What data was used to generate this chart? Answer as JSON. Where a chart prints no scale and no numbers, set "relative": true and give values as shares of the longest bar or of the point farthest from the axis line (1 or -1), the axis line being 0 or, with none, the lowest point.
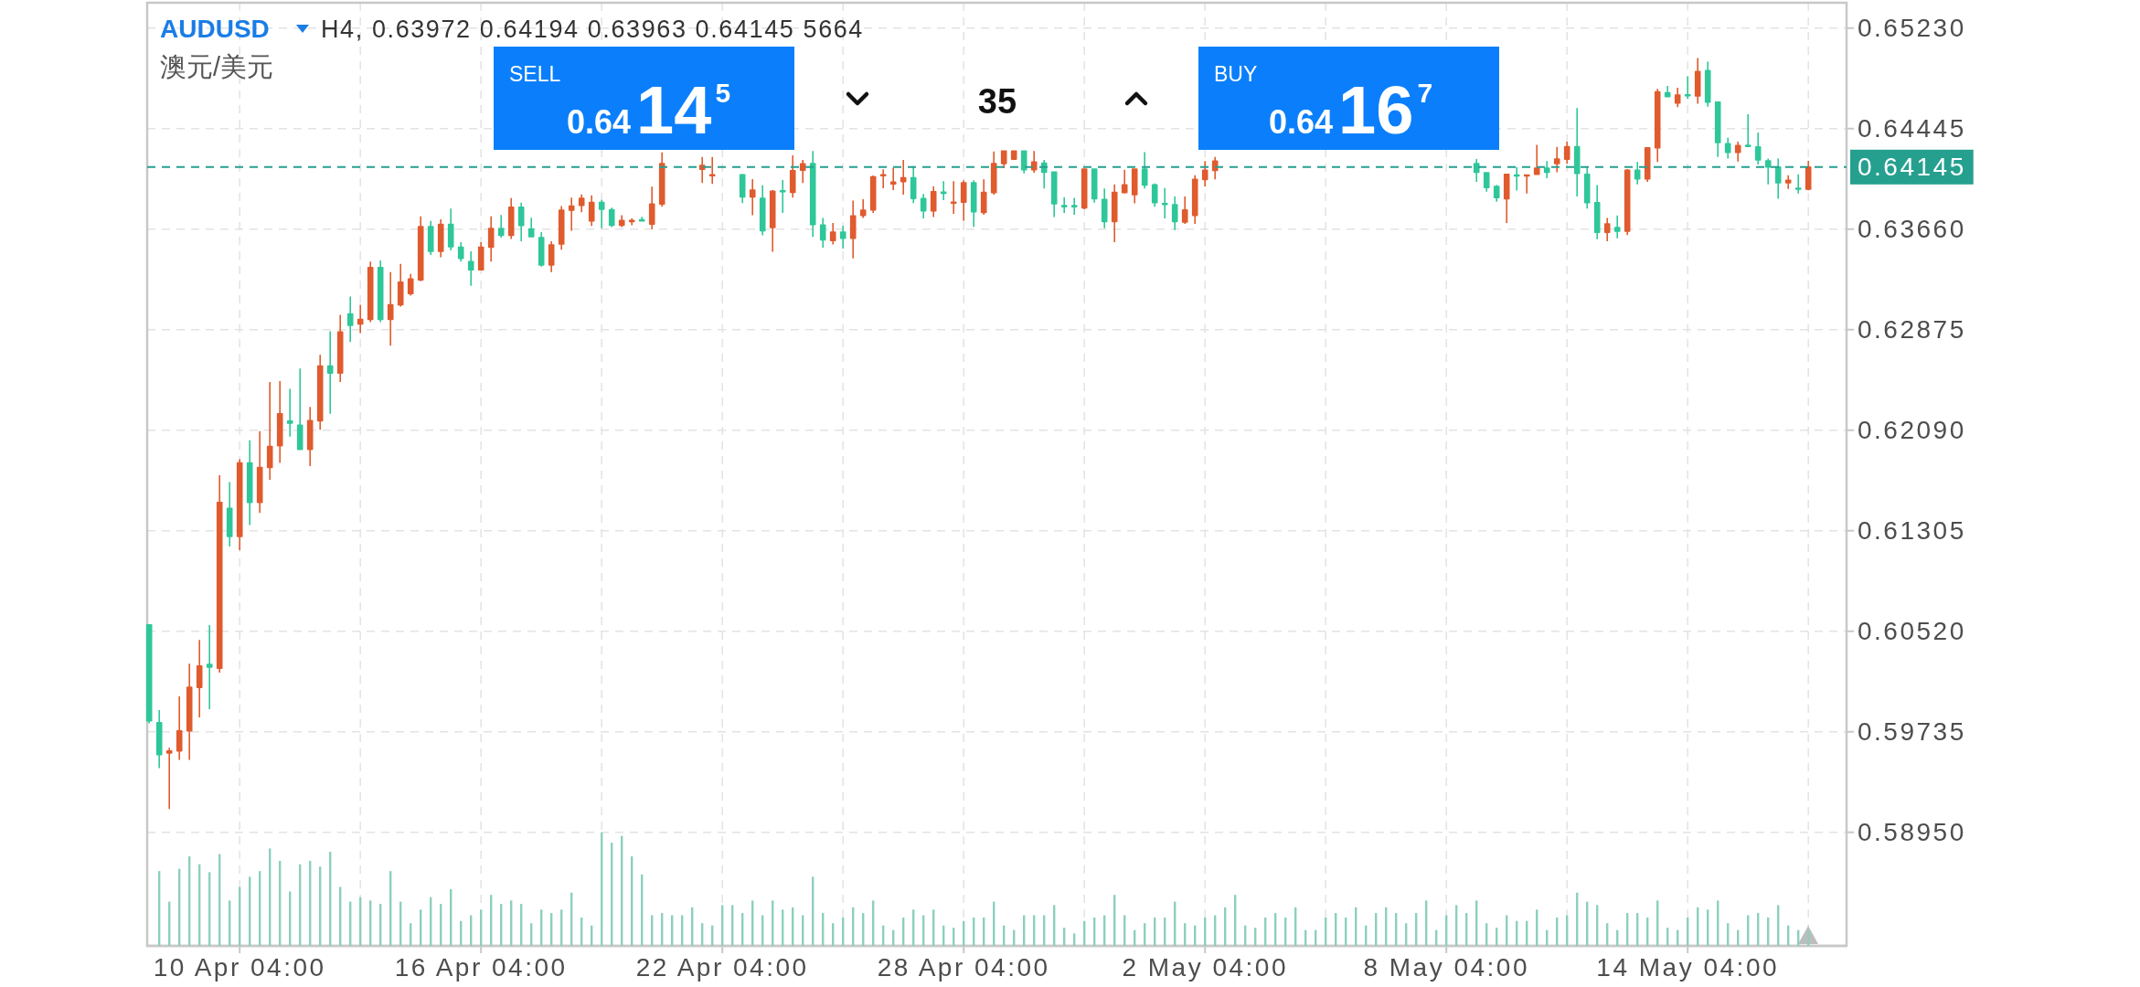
{
  "chart_data": [
    {
      "type": "candlestick",
      "title": "AUDUSD",
      "subtitle": "澳元/美元",
      "annotations": [
        "H4, 0.63972 0.64194 0.63963 0.64145 5664",
        "SELL",
        "0.64145",
        "35",
        "BUY",
        "0.64167"
      ],
      "categories": [
        null,
        null,
        null,
        null,
        null,
        null,
        null,
        null,
        null,
        "10 Apr 04:00",
        null,
        null,
        null,
        null,
        null,
        null,
        null,
        null,
        null,
        null,
        null,
        null,
        null,
        null,
        null,
        null,
        null,
        null,
        null,
        null,
        null,
        null,
        null,
        "16 Apr 04:00",
        null,
        null,
        null,
        null,
        null,
        null,
        null,
        null,
        null,
        null,
        null,
        null,
        null,
        null,
        null,
        null,
        null,
        null,
        null,
        null,
        null,
        null,
        null,
        "22 Apr 04:00",
        null,
        null,
        null,
        null,
        null,
        null,
        null,
        null,
        null,
        null,
        null,
        null,
        null,
        null,
        null,
        null,
        null,
        null,
        null,
        null,
        null,
        null,
        null,
        "28 Apr 04:00",
        null,
        null,
        null,
        null,
        null,
        null,
        null,
        null,
        null,
        null,
        null,
        null,
        null,
        null,
        null,
        null,
        null,
        null,
        null,
        null,
        null,
        null,
        null,
        "2 May 04:00",
        null,
        null,
        null,
        null,
        null,
        null,
        null,
        null,
        null,
        null,
        null,
        null,
        null,
        null,
        null,
        null,
        null,
        null,
        null,
        null,
        null,
        null,
        null,
        "8 May 04:00",
        null,
        null,
        null,
        null,
        null,
        null,
        null,
        null,
        null,
        null,
        null,
        null,
        null,
        null,
        null,
        null,
        null,
        null,
        null,
        null,
        null,
        null,
        null,
        "14 May 04:00",
        null,
        null,
        null,
        null,
        null,
        null,
        null,
        null,
        null,
        null,
        null,
        null
      ],
      "ohlc": [
        [
          0.6057,
          0.6057,
          0.598,
          0.5982
        ],
        [
          0.59805,
          0.59905,
          0.59451,
          0.59557
        ],
        [
          0.5957,
          0.5961,
          0.59132,
          0.59584
        ],
        [
          0.59586,
          0.60011,
          0.59515,
          0.59742
        ],
        [
          0.59742,
          0.60267,
          0.59515,
          0.60082
        ],
        [
          0.60082,
          0.60452,
          0.59848,
          0.60249
        ],
        [
          0.6026,
          0.60568,
          0.59912,
          0.6024
        ],
        [
          0.60231,
          0.61739,
          0.60196,
          0.61526
        ],
        [
          0.6148,
          0.61685,
          0.61182,
          0.6126
        ],
        [
          0.6126,
          0.61863,
          0.61153,
          0.61834
        ],
        [
          0.61834,
          0.62012,
          0.61349,
          0.61526
        ],
        [
          0.61526,
          0.62083,
          0.61444,
          0.61799
        ],
        [
          0.61799,
          0.62466,
          0.61703,
          0.61962
        ],
        [
          0.61969,
          0.62473,
          0.61834,
          0.62218
        ],
        [
          0.6216,
          0.62413,
          0.6204,
          0.62146
        ],
        [
          0.62129,
          0.62572,
          0.61941,
          0.61941
        ],
        [
          0.61941,
          0.62271,
          0.6181,
          0.62164
        ],
        [
          0.62164,
          0.62679,
          0.62093,
          0.6259
        ],
        [
          0.6259,
          0.62863,
          0.62218,
          0.62537
        ],
        [
          0.62537,
          0.62991,
          0.62466,
          0.62856
        ],
        [
          0.62998,
          0.63133,
          0.62778,
          0.62909
        ],
        [
          0.6292,
          0.63069,
          0.62849,
          0.62955
        ],
        [
          0.62955,
          0.63406,
          0.62934,
          0.6336
        ],
        [
          0.6336,
          0.63416,
          0.62934,
          0.62955
        ],
        [
          0.62955,
          0.63324,
          0.6275,
          0.63069
        ],
        [
          0.63069,
          0.63388,
          0.63055,
          0.63246
        ],
        [
          0.63157,
          0.6331,
          0.6314,
          0.63271
        ],
        [
          0.63264,
          0.6376,
          0.63253,
          0.63679
        ],
        [
          0.63679,
          0.63725,
          0.63459,
          0.63487
        ],
        [
          0.63487,
          0.63736,
          0.63441,
          0.63697
        ],
        [
          0.63697,
          0.63821,
          0.63494,
          0.63523
        ],
        [
          0.63519,
          0.63558,
          0.63406,
          0.63431
        ],
        [
          0.63406,
          0.63487,
          0.63218,
          0.63342
        ],
        [
          0.63342,
          0.63558,
          0.63342,
          0.63519
        ],
        [
          0.63519,
          0.6376,
          0.63406,
          0.63665
        ],
        [
          0.63665,
          0.63771,
          0.63594,
          0.63612
        ],
        [
          0.63612,
          0.63902,
          0.63583,
          0.63831
        ],
        [
          0.63831,
          0.63867,
          0.63565,
          0.63689
        ],
        [
          0.63661,
          0.6375,
          0.63601,
          0.63601
        ],
        [
          0.63594,
          0.63636,
          0.63367,
          0.63381
        ],
        [
          0.63381,
          0.63565,
          0.63324,
          0.63537
        ],
        [
          0.63544,
          0.6384,
          0.63499,
          0.63808
        ],
        [
          0.63808,
          0.63907,
          0.63648,
          0.6384
        ],
        [
          0.63845,
          0.63931,
          0.63792,
          0.639
        ],
        [
          0.63724,
          0.63924,
          0.63684,
          0.63869
        ],
        [
          0.63869,
          0.63888,
          0.63667,
          0.63816
        ],
        [
          0.63811,
          0.63828,
          0.63676,
          0.63691
        ],
        [
          0.63691,
          0.63768,
          0.63676,
          0.63727
        ],
        [
          0.63722,
          0.63744,
          0.63691,
          0.63727
        ],
        [
          0.63732,
          0.63756,
          0.63724,
          0.63727
        ],
        [
          0.637,
          0.63991,
          0.6366,
          0.63856
        ],
        [
          0.63856,
          0.6426,
          0.63835,
          0.64171
        ],
        null,
        null,
        null,
        [
          0.64128,
          0.64224,
          0.6402,
          0.64157
        ],
        [
          0.6408,
          0.64224,
          0.64013,
          0.64085
        ],
        null,
        null,
        [
          0.64085,
          0.64092,
          0.63864,
          0.63912
        ],
        [
          0.63912,
          0.64051,
          0.63768,
          0.63965
        ],
        [
          0.639,
          0.64003,
          0.63612,
          0.63648
        ],
        [
          0.63672,
          0.63965,
          0.63484,
          0.63955
        ],
        [
          0.6396,
          0.64044,
          0.63787,
          0.63955
        ],
        [
          0.63948,
          0.64236,
          0.63907,
          0.64116
        ],
        [
          0.64121,
          0.642,
          0.6402,
          0.64169
        ],
        [
          0.64171,
          0.6427,
          0.636,
          0.63696
        ],
        [
          0.63691,
          0.63748,
          0.63516,
          0.63576
        ],
        [
          0.63571,
          0.63708,
          0.6354,
          0.63636
        ],
        [
          0.63636,
          0.63684,
          0.63508,
          0.63588
        ],
        [
          0.63588,
          0.63883,
          0.63432,
          0.63763
        ],
        [
          0.63768,
          0.63893,
          0.63748,
          0.63808
        ],
        [
          0.63811,
          0.6408,
          0.63787,
          0.64068
        ],
        [
          0.6408,
          0.64128,
          0.63979,
          0.64085
        ],
        [
          0.64013,
          0.6414,
          0.63965,
          0.64027
        ],
        [
          0.64032,
          0.642,
          0.63929,
          0.64061
        ],
        [
          0.64061,
          0.64152,
          0.63864,
          0.639
        ],
        [
          0.63898,
          0.63934,
          0.63743,
          0.63803
        ],
        [
          0.63803,
          0.63993,
          0.63755,
          0.63953
        ],
        [
          0.63948,
          0.64034,
          0.63886,
          0.63941
        ],
        [
          0.63865,
          0.64034,
          0.63779,
          0.6387
        ],
        [
          0.6387,
          0.64041,
          0.63724,
          0.64022
        ],
        [
          0.64022,
          0.64041,
          0.63677,
          0.63796
        ],
        [
          0.63791,
          0.64048,
          0.63772,
          0.63946
        ],
        [
          0.63946,
          0.64267,
          0.63929,
          0.64172
        ],
        [
          0.64172,
          0.6427,
          0.64136,
          0.6427
        ],
        [
          0.64207,
          0.6427,
          0.64207,
          0.6427
        ],
        [
          0.6427,
          0.6427,
          0.64096,
          0.64124
        ],
        [
          0.64124,
          0.6427,
          0.641,
          0.64184
        ],
        [
          0.64176,
          0.642,
          0.63977,
          0.64105
        ],
        [
          0.64105,
          0.64105,
          0.63755,
          0.63858
        ],
        [
          0.63843,
          0.6391,
          0.63786,
          0.63838
        ],
        [
          0.63843,
          0.63905,
          0.63772,
          0.63838
        ],
        [
          0.63827,
          0.64129,
          0.63815,
          0.64129
        ],
        [
          0.64129,
          0.64129,
          0.63867,
          0.63898
        ],
        [
          0.63891,
          0.63977,
          0.63667,
          0.6372
        ],
        [
          0.6372,
          0.6401,
          0.63558,
          0.63946
        ],
        [
          0.63946,
          0.64124,
          0.63939,
          0.64005
        ],
        [
          0.63929,
          0.64129,
          0.63862,
          0.64129
        ],
        [
          0.64129,
          0.64262,
          0.63977,
          0.64005
        ],
        [
          0.64005,
          0.64017,
          0.63834,
          0.63867
        ],
        [
          0.6386,
          0.63981,
          0.63743,
          0.63858
        ],
        [
          0.63851,
          0.63915,
          0.63653,
          0.6372
        ],
        [
          0.63715,
          0.63915,
          0.63701,
          0.6381
        ],
        [
          0.63767,
          0.64081,
          0.63701,
          0.64048
        ],
        [
          0.64048,
          0.64191,
          0.63993,
          0.64119
        ],
        [
          0.64119,
          0.64224,
          0.64048,
          0.64191
        ],
        null,
        null,
        null,
        null,
        null,
        null,
        null,
        null,
        null,
        null,
        null,
        null,
        null,
        null,
        null,
        null,
        null,
        null,
        null,
        null,
        null,
        null,
        null,
        null,
        null,
        [
          0.64172,
          0.64207,
          0.64029,
          0.64105
        ],
        [
          0.641,
          0.641,
          0.63953,
          0.63985
        ],
        [
          0.63993,
          0.64005,
          0.63874,
          0.63906
        ],
        [
          0.63898,
          0.64088,
          0.63708,
          0.64088
        ],
        [
          0.64083,
          0.64143,
          0.63962,
          0.64079
        ],
        [
          0.64079,
          0.64083,
          0.63939,
          0.64083
        ],
        [
          0.64088,
          0.64319,
          0.64088,
          0.64136
        ],
        [
          0.64136,
          0.64191,
          0.64057,
          0.64105
        ],
        [
          0.64172,
          0.64303,
          0.64105,
          0.64207
        ],
        [
          0.64207,
          0.64343,
          0.64172,
          0.64303
        ],
        [
          0.64303,
          0.64605,
          0.63915,
          0.64096
        ],
        [
          0.64088,
          0.64148,
          0.6382,
          0.63867
        ],
        [
          0.63867,
          0.64005,
          0.63582,
          0.63636
        ],
        [
          0.63636,
          0.63748,
          0.63565,
          0.63701
        ],
        [
          0.63672,
          0.63767,
          0.63589,
          0.63644
        ],
        [
          0.63644,
          0.64129,
          0.63613,
          0.64119
        ],
        [
          0.64119,
          0.64184,
          0.6401,
          0.64053
        ],
        [
          0.64053,
          0.64295,
          0.64029,
          0.64295
        ],
        [
          0.64295,
          0.64755,
          0.64184,
          0.64731
        ],
        [
          0.64724,
          0.64778,
          0.64695,
          0.64695
        ],
        [
          0.64645,
          0.64764,
          0.64612,
          0.64707
        ],
        [
          0.64709,
          0.64854,
          0.64676,
          0.64707
        ],
        [
          0.647,
          0.64997,
          0.6464,
          0.6489
        ],
        [
          0.64897,
          0.64968,
          0.64616,
          0.64652
        ],
        [
          0.64652,
          0.64652,
          0.64224,
          0.64336
        ],
        [
          0.64326,
          0.64374,
          0.64212,
          0.64259
        ],
        [
          0.64259,
          0.64343,
          0.64188,
          0.64312
        ],
        [
          0.64314,
          0.64557,
          0.64307,
          0.64312
        ],
        [
          0.64302,
          0.64414,
          0.64164,
          0.642
        ],
        [
          0.64193,
          0.64212,
          0.64009,
          0.64145
        ],
        [
          0.64145,
          0.64212,
          0.63898,
          0.64022
        ],
        [
          0.64022,
          0.64081,
          0.63974,
          0.64041
        ],
        [
          0.63979,
          0.64088,
          0.63938,
          0.63974
        ],
        [
          0.63972,
          0.64194,
          0.63963,
          0.64145
        ]
      ],
      "colors": [
        "#2fc79a",
        "#2fc79a",
        "#e05b2e",
        "#e05b2e",
        "#e05b2e",
        "#e05b2e",
        "#2fc79a",
        "#e05b2e",
        "#2fc79a",
        "#e05b2e",
        "#2fc79a",
        "#e05b2e",
        "#e05b2e",
        "#e05b2e",
        "#2fc79a",
        "#2fc79a",
        "#e05b2e",
        "#e05b2e",
        "#2fc79a",
        "#e05b2e",
        "#2fc79a",
        "#e05b2e",
        "#e05b2e",
        "#2fc79a",
        "#e05b2e",
        "#e05b2e",
        "#e05b2e",
        "#e05b2e",
        "#2fc79a",
        "#e05b2e",
        "#2fc79a",
        "#2fc79a",
        "#2fc79a",
        "#e05b2e",
        "#e05b2e",
        "#2fc79a",
        "#e05b2e",
        "#2fc79a",
        "#2fc79a",
        "#2fc79a",
        "#e05b2e",
        "#e05b2e",
        "#e05b2e",
        "#e05b2e",
        "#e05b2e",
        "#2fc79a",
        "#2fc79a",
        "#e05b2e",
        "#e05b2e",
        "#2fc79a",
        "#e05b2e",
        "#e05b2e",
        null,
        null,
        null,
        "#e05b2e",
        "#e05b2e",
        null,
        null,
        "#2fc79a",
        "#e05b2e",
        "#2fc79a",
        "#e05b2e",
        "#2fc79a",
        "#e05b2e",
        "#e05b2e",
        "#2fc79a",
        "#2fc79a",
        "#e05b2e",
        "#2fc79a",
        "#e05b2e",
        "#e05b2e",
        "#e05b2e",
        "#e05b2e",
        "#e05b2e",
        "#e05b2e",
        "#2fc79a",
        "#2fc79a",
        "#e05b2e",
        "#2fc79a",
        "#e05b2e",
        "#e05b2e",
        "#2fc79a",
        "#e05b2e",
        "#e05b2e",
        "#e05b2e",
        "#e05b2e",
        "#2fc79a",
        "#e05b2e",
        "#2fc79a",
        "#2fc79a",
        "#2fc79a",
        "#2fc79a",
        "#e05b2e",
        "#2fc79a",
        "#2fc79a",
        "#e05b2e",
        "#e05b2e",
        "#e05b2e",
        "#2fc79a",
        "#2fc79a",
        "#2fc79a",
        "#2fc79a",
        "#e05b2e",
        "#e05b2e",
        "#e05b2e",
        "#e05b2e",
        null,
        null,
        null,
        null,
        null,
        null,
        null,
        null,
        null,
        null,
        null,
        null,
        null,
        null,
        null,
        null,
        null,
        null,
        null,
        null,
        null,
        null,
        null,
        null,
        null,
        "#2fc79a",
        "#2fc79a",
        "#2fc79a",
        "#e05b2e",
        "#2fc79a",
        "#e05b2e",
        "#e05b2e",
        "#2fc79a",
        "#e05b2e",
        "#e05b2e",
        "#2fc79a",
        "#2fc79a",
        "#2fc79a",
        "#e05b2e",
        "#2fc79a",
        "#e05b2e",
        "#2fc79a",
        "#e05b2e",
        "#e05b2e",
        "#2fc79a",
        "#e05b2e",
        "#2fc79a",
        "#e05b2e",
        "#2fc79a",
        "#2fc79a",
        "#2fc79a",
        "#e05b2e",
        "#2fc79a",
        "#2fc79a",
        "#2fc79a",
        "#2fc79a",
        "#e05b2e",
        "#2fc79a",
        "#e05b2e"
      ],
      "ylim": [
        0.58063,
        0.65428
      ],
      "yticks": [
        {
          "value": 0.6523,
          "label": "0.65230"
        },
        {
          "value": 0.64445,
          "label": "0.64445"
        },
        {
          "value": 0.6366,
          "label": "0.63660"
        },
        {
          "value": 0.62875,
          "label": "0.62875"
        },
        {
          "value": 0.6209,
          "label": "0.62090"
        },
        {
          "value": 0.61305,
          "label": "0.61305"
        },
        {
          "value": 0.6052,
          "label": "0.60520"
        },
        {
          "value": 0.59735,
          "label": "0.59735"
        },
        {
          "value": 0.5895,
          "label": "0.58950"
        }
      ],
      "grid": true,
      "ref_lines": [
        {
          "axis": "y",
          "value": 0.64145,
          "label": "0.64145",
          "color": "#25a08f",
          "line_style": "dashed"
        }
      ]
    },
    {
      "type": "bar",
      "relative": true,
      "color": "#8ccfbf",
      "categories": [
        null,
        null,
        null,
        null,
        null,
        null,
        null,
        null,
        null,
        null,
        null,
        null,
        null,
        null,
        null,
        null,
        null,
        null,
        null,
        null,
        null,
        null,
        null,
        null,
        null,
        null,
        null,
        null,
        null,
        null,
        null,
        null,
        null,
        null,
        null,
        null,
        null,
        null,
        null,
        null,
        null,
        null,
        null,
        null,
        null,
        null,
        null,
        null,
        null,
        null,
        null,
        null,
        null,
        null,
        null,
        null,
        null,
        null,
        null,
        null,
        null,
        null,
        null,
        null,
        null,
        null,
        null,
        null,
        null,
        null,
        null,
        null,
        null,
        null,
        null,
        null,
        null,
        null,
        null,
        null,
        null,
        null,
        null,
        null,
        null,
        null,
        null,
        null,
        null,
        null,
        null,
        null,
        null,
        null,
        null,
        null,
        null,
        null,
        null,
        null,
        null,
        null,
        null,
        null,
        null,
        null,
        null,
        null,
        null,
        null,
        null,
        null,
        null,
        null,
        null,
        null,
        null,
        null,
        null,
        null,
        null,
        null,
        null,
        null,
        null,
        null,
        null,
        null,
        null,
        null,
        null,
        null,
        null,
        null,
        null,
        null,
        null,
        null,
        null,
        null,
        null,
        null,
        null,
        null,
        null,
        null,
        null,
        null,
        null,
        null,
        null,
        null,
        null,
        null,
        null,
        null,
        null,
        null,
        null,
        null,
        null,
        null,
        null,
        null,
        null,
        null
      ],
      "values": [
        null,
        0.66,
        0.39,
        0.68,
        0.79,
        0.72,
        0.65,
        0.81,
        0.4,
        0.52,
        0.61,
        0.66,
        0.86,
        0.75,
        0.48,
        0.72,
        0.75,
        0.7,
        0.83,
        0.52,
        0.39,
        0.43,
        0.4,
        0.37,
        0.66,
        0.39,
        0.2,
        0.32,
        0.43,
        0.37,
        0.5,
        0.22,
        0.27,
        0.32,
        0.45,
        0.37,
        0.4,
        0.37,
        0.2,
        0.32,
        0.29,
        0.32,
        0.47,
        0.25,
        0.18,
        1,
        0.91,
        0.97,
        0.79,
        0.63,
        0.27,
        0.29,
        0.27,
        0.27,
        0.34,
        0.2,
        0.18,
        0.36,
        0.36,
        0.29,
        0.4,
        0.27,
        0.4,
        0.32,
        0.34,
        0.27,
        0.61,
        0.29,
        0.2,
        0.25,
        0.34,
        0.29,
        0.4,
        0.18,
        0.14,
        0.25,
        0.32,
        0.27,
        0.32,
        0.18,
        0.16,
        0.22,
        0.25,
        0.25,
        0.39,
        0.18,
        0.14,
        0.27,
        0.27,
        0.27,
        0.36,
        0.16,
        0.11,
        0.22,
        0.25,
        0.27,
        0.45,
        0.27,
        0.14,
        0.2,
        0.25,
        0.25,
        0.39,
        0.2,
        0.18,
        0.25,
        0.27,
        0.34,
        0.45,
        0.18,
        0.16,
        0.25,
        0.29,
        0.25,
        0.34,
        0.14,
        0.14,
        0.25,
        0.29,
        0.25,
        0.34,
        0.18,
        0.29,
        0.34,
        0.29,
        0.2,
        0.29,
        0.4,
        0.14,
        0.27,
        0.36,
        0.29,
        0.4,
        0.2,
        0.16,
        0.27,
        0.22,
        0.22,
        0.32,
        0.14,
        0.25,
        0.27,
        0.47,
        0.39,
        0.36,
        0.2,
        0.14,
        0.29,
        0.29,
        0.25,
        0.4,
        0.16,
        0.14,
        0.25,
        0.34,
        0.32,
        0.4,
        0.2,
        0.14,
        0.27,
        0.29,
        0.25,
        0.36,
        0.18,
        0.14,
        0.14
      ]
    }
  ]
}
